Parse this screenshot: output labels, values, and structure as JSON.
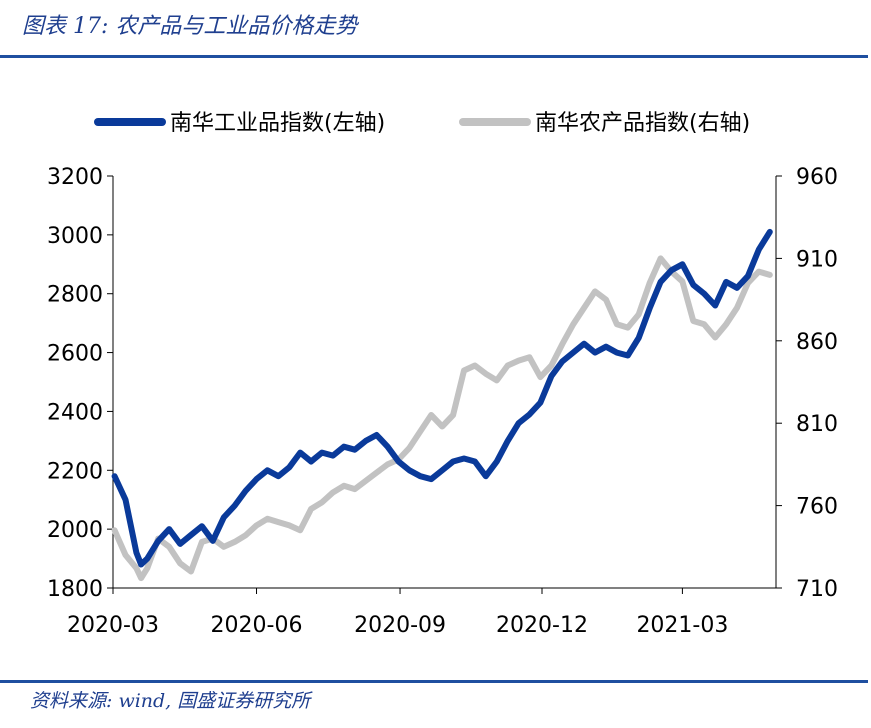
{
  "header": {
    "title": "图表 17:  农产品与工业品价格走势"
  },
  "footer": {
    "source": "资料来源: wind, 国盛证券研究所"
  },
  "colors": {
    "industrial": "#0a3a9a",
    "agricultural": "#c2c2c2",
    "rule": "#1f4fa0"
  },
  "chart_data": {
    "type": "line",
    "x_ticks": [
      "2020-03",
      "2020-06",
      "2020-09",
      "2020-12",
      "2021-03"
    ],
    "y_left": {
      "lim": [
        1800,
        3200
      ],
      "ticks": [
        1800,
        2000,
        2200,
        2400,
        2600,
        2800,
        3000,
        3200
      ]
    },
    "y_right": {
      "lim": [
        710,
        960
      ],
      "ticks": [
        710,
        760,
        810,
        860,
        910,
        960
      ]
    },
    "grid": false,
    "legend_position": "top",
    "series": [
      {
        "name": "南华工业品指数(左轴)",
        "axis": "left",
        "color": "#0a3a9a",
        "x": [
          "2020-03-02",
          "2020-03-09",
          "2020-03-16",
          "2020-03-19",
          "2020-03-23",
          "2020-03-30",
          "2020-04-06",
          "2020-04-13",
          "2020-04-20",
          "2020-04-27",
          "2020-05-04",
          "2020-05-11",
          "2020-05-18",
          "2020-05-25",
          "2020-06-01",
          "2020-06-08",
          "2020-06-15",
          "2020-06-22",
          "2020-06-29",
          "2020-07-06",
          "2020-07-13",
          "2020-07-20",
          "2020-07-27",
          "2020-08-03",
          "2020-08-10",
          "2020-08-17",
          "2020-08-24",
          "2020-08-31",
          "2020-09-07",
          "2020-09-14",
          "2020-09-21",
          "2020-09-28",
          "2020-10-05",
          "2020-10-12",
          "2020-10-19",
          "2020-10-26",
          "2020-11-02",
          "2020-11-09",
          "2020-11-16",
          "2020-11-23",
          "2020-11-30",
          "2020-12-07",
          "2020-12-14",
          "2020-12-21",
          "2020-12-28",
          "2021-01-04",
          "2021-01-11",
          "2021-01-18",
          "2021-01-25",
          "2021-02-01",
          "2021-02-08",
          "2021-02-15",
          "2021-02-22",
          "2021-03-01",
          "2021-03-08",
          "2021-03-15",
          "2021-03-22",
          "2021-03-29",
          "2021-04-05",
          "2021-04-12",
          "2021-04-19",
          "2021-04-26"
        ],
        "values": [
          2180,
          2100,
          1920,
          1880,
          1900,
          1960,
          2000,
          1950,
          1980,
          2010,
          1960,
          2040,
          2080,
          2130,
          2170,
          2200,
          2180,
          2210,
          2260,
          2230,
          2260,
          2250,
          2280,
          2270,
          2300,
          2320,
          2280,
          2230,
          2200,
          2180,
          2170,
          2200,
          2230,
          2240,
          2230,
          2180,
          2230,
          2300,
          2360,
          2390,
          2430,
          2520,
          2570,
          2600,
          2630,
          2600,
          2620,
          2600,
          2590,
          2650,
          2750,
          2840,
          2880,
          2900,
          2830,
          2800,
          2760,
          2840,
          2820,
          2860,
          2950,
          3010
        ]
      },
      {
        "name": "南华农产品指数(右轴)",
        "axis": "right",
        "color": "#c2c2c2",
        "x": [
          "2020-03-02",
          "2020-03-09",
          "2020-03-16",
          "2020-03-19",
          "2020-03-23",
          "2020-03-30",
          "2020-04-06",
          "2020-04-13",
          "2020-04-20",
          "2020-04-27",
          "2020-05-04",
          "2020-05-11",
          "2020-05-18",
          "2020-05-25",
          "2020-06-01",
          "2020-06-08",
          "2020-06-15",
          "2020-06-22",
          "2020-06-29",
          "2020-07-06",
          "2020-07-13",
          "2020-07-20",
          "2020-07-27",
          "2020-08-03",
          "2020-08-10",
          "2020-08-17",
          "2020-08-24",
          "2020-08-31",
          "2020-09-07",
          "2020-09-14",
          "2020-09-21",
          "2020-09-28",
          "2020-10-05",
          "2020-10-12",
          "2020-10-19",
          "2020-10-26",
          "2020-11-02",
          "2020-11-09",
          "2020-11-16",
          "2020-11-23",
          "2020-11-30",
          "2020-12-07",
          "2020-12-14",
          "2020-12-21",
          "2020-12-28",
          "2021-01-04",
          "2021-01-11",
          "2021-01-18",
          "2021-01-25",
          "2021-02-01",
          "2021-02-08",
          "2021-02-15",
          "2021-02-22",
          "2021-03-01",
          "2021-03-08",
          "2021-03-15",
          "2021-03-22",
          "2021-03-29",
          "2021-04-05",
          "2021-04-12",
          "2021-04-19",
          "2021-04-26"
        ],
        "values": [
          745,
          730,
          722,
          716,
          722,
          740,
          735,
          725,
          720,
          738,
          740,
          735,
          738,
          742,
          748,
          752,
          750,
          748,
          745,
          758,
          762,
          768,
          772,
          770,
          775,
          780,
          785,
          788,
          795,
          805,
          815,
          808,
          815,
          842,
          845,
          840,
          836,
          845,
          848,
          850,
          838,
          845,
          858,
          870,
          880,
          890,
          885,
          870,
          868,
          876,
          895,
          910,
          902,
          896,
          872,
          870,
          862,
          870,
          880,
          895,
          902,
          900
        ]
      }
    ]
  }
}
